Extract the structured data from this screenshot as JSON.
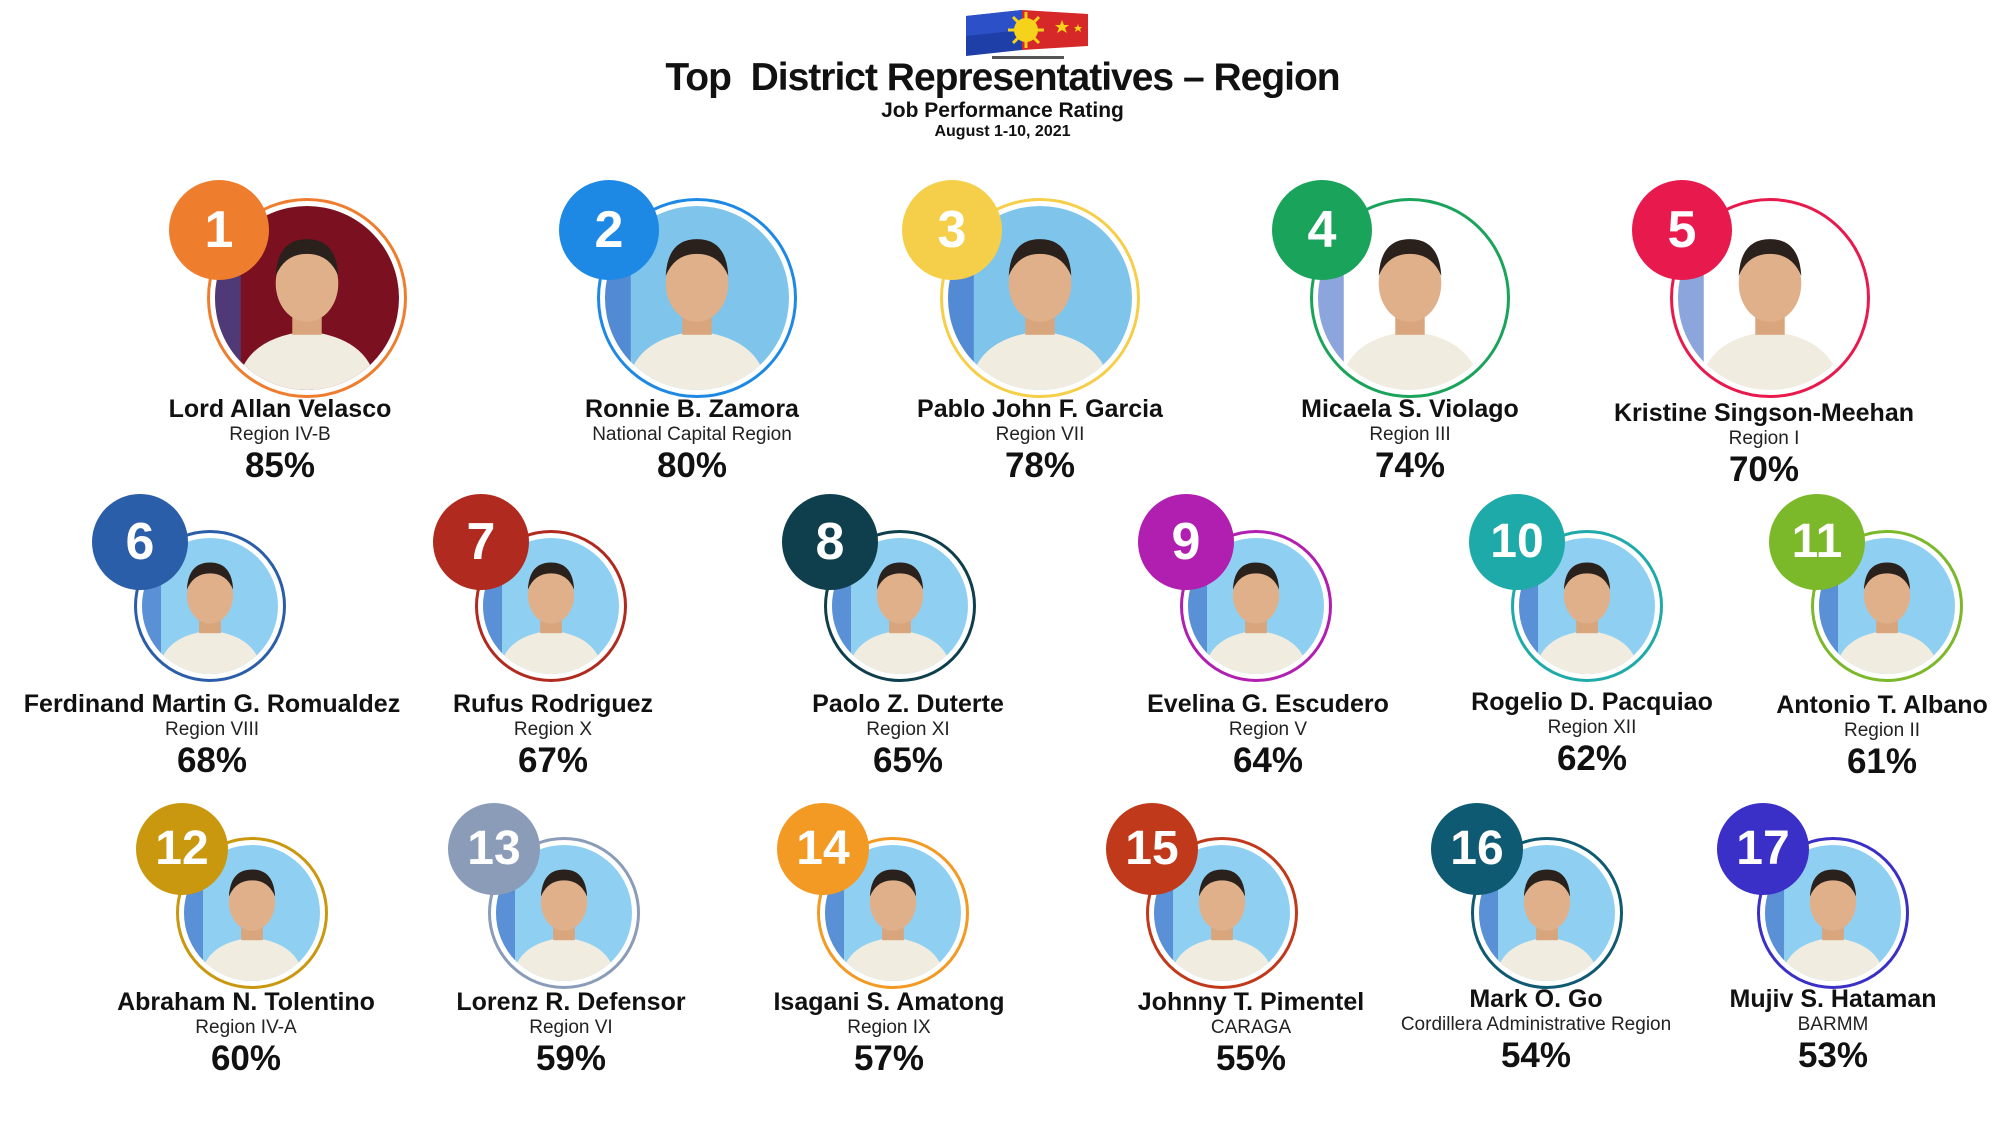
{
  "header": {
    "title": "Top  District Representatives – Region",
    "subtitle": "Job Performance Rating",
    "dates": "August 1-10, 2021",
    "logo_icon": "philippine-flag-sun-logo"
  },
  "colors": {
    "rank_1": "#ef7d2e",
    "rank_2": "#1e88e5",
    "rank_3": "#f6cf4a",
    "rank_4": "#1aa35a",
    "rank_5": "#e8194c",
    "rank_6": "#2b5ea8",
    "rank_7": "#b02a1f",
    "rank_8": "#0f3f4c",
    "rank_9": "#b01fb0",
    "rank_10": "#1eaaa8",
    "rank_11": "#7bb82a",
    "rank_12": "#c9980f",
    "rank_13": "#8a9cb8",
    "rank_14": "#f39a25",
    "rank_15": "#c0391b",
    "rank_16": "#0f5a73",
    "rank_17": "#3a2fc6"
  },
  "representatives": [
    {
      "rank": "1",
      "name": "Lord Allan Velasco",
      "region": "Region IV-B",
      "rating": "85%"
    },
    {
      "rank": "2",
      "name": "Ronnie B. Zamora",
      "region": "National Capital Region",
      "rating": "80%"
    },
    {
      "rank": "3",
      "name": "Pablo John F. Garcia",
      "region": "Region VII",
      "rating": "78%"
    },
    {
      "rank": "4",
      "name": "Micaela S. Violago",
      "region": "Region III",
      "rating": "74%"
    },
    {
      "rank": "5",
      "name": "Kristine Singson-Meehan",
      "region": "Region I",
      "rating": "70%"
    },
    {
      "rank": "6",
      "name": "Ferdinand Martin G. Romualdez",
      "region": "Region VIII",
      "rating": "68%"
    },
    {
      "rank": "7",
      "name": "Rufus Rodriguez",
      "region": "Region X",
      "rating": "67%"
    },
    {
      "rank": "8",
      "name": "Paolo Z. Duterte",
      "region": "Region XI",
      "rating": "65%"
    },
    {
      "rank": "9",
      "name": "Evelina G. Escudero",
      "region": "Region V",
      "rating": "64%"
    },
    {
      "rank": "10",
      "name": "Rogelio D. Pacquiao",
      "region": "Region XII",
      "rating": "62%"
    },
    {
      "rank": "11",
      "name": "Antonio T. Albano",
      "region": "Region II",
      "rating": "61%"
    },
    {
      "rank": "12",
      "name": "Abraham N. Tolentino",
      "region": "Region IV-A",
      "rating": "60%"
    },
    {
      "rank": "13",
      "name": "Lorenz R. Defensor",
      "region": "Region VI",
      "rating": "59%"
    },
    {
      "rank": "14",
      "name": "Isagani S. Amatong",
      "region": "Region IX",
      "rating": "57%"
    },
    {
      "rank": "15",
      "name": "Johnny T. Pimentel",
      "region": "CARAGA",
      "rating": "55%"
    },
    {
      "rank": "16",
      "name": "Mark O. Go",
      "region": "Cordillera Administrative Region",
      "rating": "54%"
    },
    {
      "rank": "17",
      "name": "Mujiv S. Hataman",
      "region": "BARMM",
      "rating": "53%"
    }
  ]
}
